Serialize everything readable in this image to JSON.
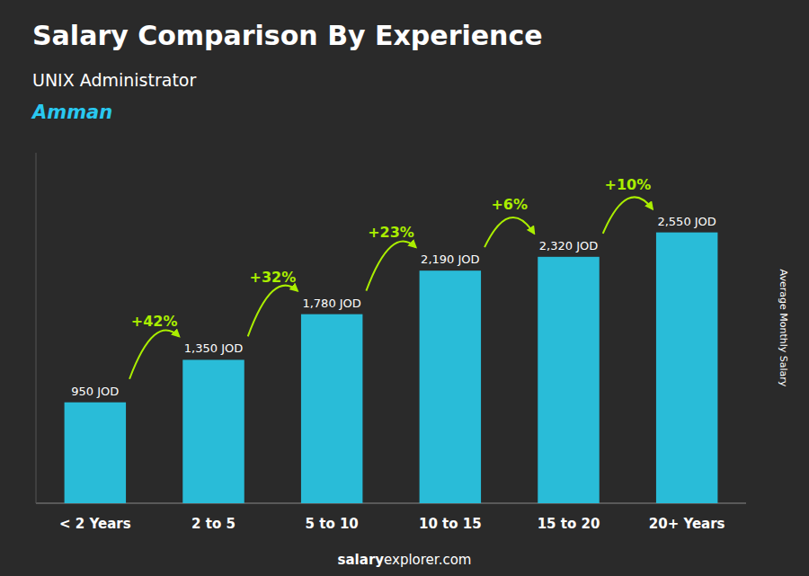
{
  "chart_data": {
    "type": "bar",
    "title": "Salary Comparison By Experience",
    "subtitle": "UNIX Administrator",
    "annotations": [
      "Amman",
      "salary",
      "explorer.com"
    ],
    "ylabel": "Average Monthly Salary",
    "categories": [
      "< 2 Years",
      "2 to 5",
      "5 to 10",
      "10 to 15",
      "15 to 20",
      "20+ Years"
    ],
    "values": [
      950,
      1350,
      1780,
      2190,
      2320,
      2550
    ],
    "value_labels": [
      "950 JOD",
      "1,350 JOD",
      "1,780 JOD",
      "2,190 JOD",
      "2,320 JOD",
      "2,550 JOD"
    ],
    "data_labels": true,
    "color": "#29bcd8",
    "pct_changes": {
      "color": "#aaee00",
      "values": [
        42,
        32,
        23,
        6,
        10
      ],
      "value_labels": [
        "+42%",
        "+32%",
        "+23%",
        "+6%",
        "+10%"
      ]
    },
    "ylim": [
      0,
      3300
    ],
    "tick_labels": "x",
    "grid": false
  }
}
